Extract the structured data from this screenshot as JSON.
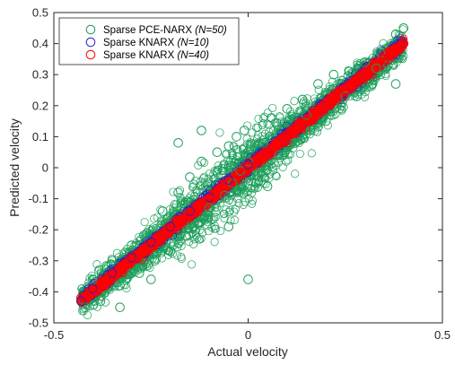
{
  "chart_data": {
    "type": "scatter",
    "xlabel": "Actual velocity",
    "ylabel": "Predicted velocity",
    "xlim": [
      -0.5,
      0.5
    ],
    "ylim": [
      -0.5,
      0.5
    ],
    "xticks": [
      -0.5,
      0,
      0.5
    ],
    "xtick_labels": [
      "-0.5",
      "0",
      "0.5"
    ],
    "yticks": [
      -0.5,
      -0.4,
      -0.3,
      -0.2,
      -0.1,
      0,
      0.1,
      0.2,
      0.3,
      0.4,
      0.5
    ],
    "ytick_labels": [
      "-0.5",
      "-0.4",
      "-0.3",
      "-0.2",
      "-0.1",
      "0",
      "0.1",
      "0.2",
      "0.3",
      "0.4",
      "0.5"
    ],
    "grid": false,
    "legend_position": "top-left",
    "marker": "open-circle",
    "series": [
      {
        "name_main": "Sparse PCE-NARX ",
        "name_param": "(N=50)",
        "color": "#1b9e5a",
        "x": [
          -0.42,
          -0.4,
          -0.38,
          -0.35,
          -0.33,
          -0.3,
          -0.28,
          -0.26,
          -0.24,
          -0.22,
          -0.2,
          -0.18,
          -0.16,
          -0.15,
          -0.13,
          -0.12,
          -0.1,
          -0.08,
          -0.06,
          -0.05,
          -0.04,
          -0.03,
          -0.02,
          -0.01,
          0.0,
          0.02,
          0.04,
          0.06,
          0.08,
          0.1,
          0.12,
          0.14,
          0.16,
          0.18,
          0.2,
          0.22,
          0.24,
          0.26,
          0.28,
          0.3,
          0.32,
          0.34,
          0.36,
          0.38,
          0.4,
          -0.33,
          -0.25,
          -0.18,
          -0.12,
          -0.05,
          0.05,
          0.15,
          0.25,
          0.33,
          0.0,
          -0.3,
          0.38
        ],
        "y": [
          -0.45,
          -0.36,
          -0.43,
          -0.3,
          -0.38,
          -0.25,
          -0.34,
          -0.21,
          -0.3,
          -0.14,
          -0.27,
          -0.08,
          -0.22,
          -0.03,
          -0.18,
          0.02,
          -0.13,
          0.05,
          -0.09,
          0.07,
          -0.05,
          0.1,
          -0.01,
          0.12,
          0.02,
          -0.05,
          0.08,
          0.16,
          0.04,
          0.19,
          0.08,
          0.22,
          0.12,
          0.27,
          0.15,
          0.3,
          0.2,
          0.31,
          0.23,
          0.34,
          0.27,
          0.37,
          0.33,
          0.43,
          0.45,
          -0.45,
          -0.36,
          0.08,
          0.12,
          -0.19,
          -0.06,
          0.17,
          0.23,
          0.32,
          -0.36,
          -0.34,
          0.27
        ]
      },
      {
        "name_main": "Sparse KNARX ",
        "name_param": "(N=10)",
        "color": "#2222cc",
        "x": [
          -0.43,
          -0.4,
          -0.35,
          -0.3,
          -0.25,
          -0.2,
          -0.15,
          -0.1,
          -0.05,
          0.0,
          0.05,
          0.1,
          0.15,
          0.2,
          0.25,
          0.3,
          0.35,
          0.4
        ],
        "y": [
          -0.43,
          -0.39,
          -0.34,
          -0.29,
          -0.24,
          -0.19,
          -0.14,
          -0.095,
          -0.04,
          0.01,
          0.05,
          0.1,
          0.15,
          0.2,
          0.25,
          0.3,
          0.35,
          0.4
        ]
      },
      {
        "name_main": "Sparse KNARX ",
        "name_param": "(N=40)",
        "color": "#ff0000",
        "x": [
          -0.43,
          -0.4,
          -0.35,
          -0.3,
          -0.25,
          -0.2,
          -0.15,
          -0.1,
          -0.05,
          0.0,
          0.05,
          0.1,
          0.15,
          0.2,
          0.25,
          0.3,
          0.35,
          0.4
        ],
        "y": [
          -0.42,
          -0.4,
          -0.35,
          -0.3,
          -0.25,
          -0.2,
          -0.15,
          -0.1,
          -0.05,
          0.0,
          0.05,
          0.1,
          0.15,
          0.2,
          0.25,
          0.3,
          0.35,
          0.4
        ]
      }
    ]
  }
}
